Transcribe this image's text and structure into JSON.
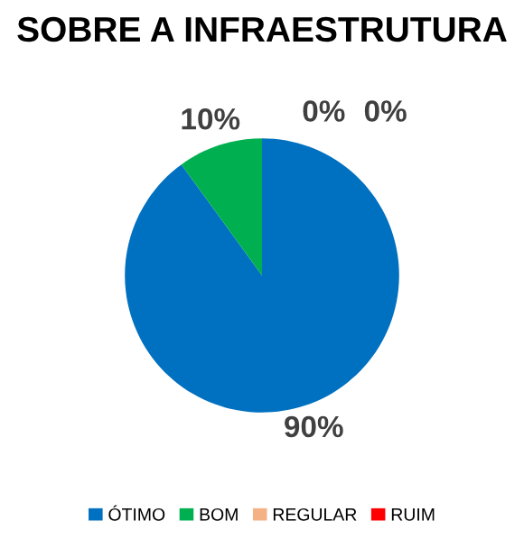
{
  "chart_data": {
    "type": "pie",
    "title": "SOBRE A INFRAESTRUTURA",
    "categories": [
      "ÓTIMO",
      "BOM",
      "REGULAR",
      "RUIM"
    ],
    "values": [
      90,
      10,
      0,
      0
    ],
    "colors": [
      "#0070c0",
      "#00b050",
      "#f4b183",
      "#ff0000"
    ],
    "value_labels": [
      "90%",
      "10%",
      "0%",
      "0%"
    ],
    "legend": "bottom"
  }
}
